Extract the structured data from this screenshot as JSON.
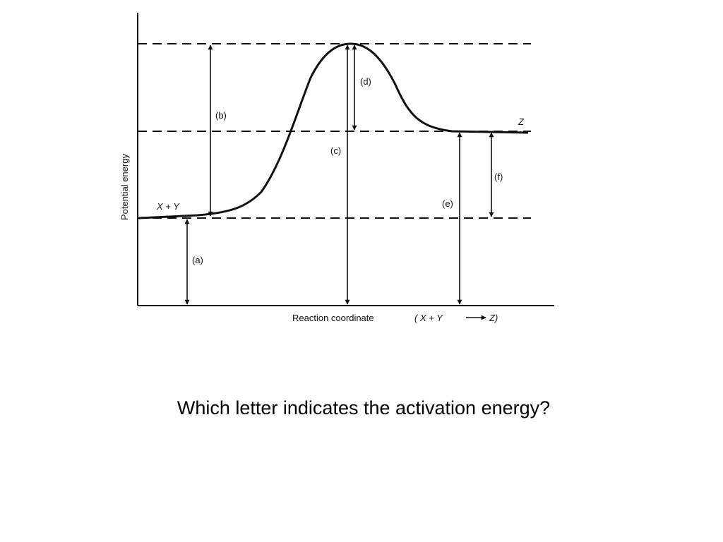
{
  "diagram": {
    "y_axis_label": "Potential energy",
    "x_axis_label": "Reaction coordinate",
    "x_axis_equation": {
      "open": "(",
      "reactants": "X + Y",
      "product": "Z)"
    },
    "reactants_label": "X + Y",
    "product_label": "Z",
    "arrows": [
      {
        "id": "a",
        "label": "(a)"
      },
      {
        "id": "b",
        "label": "(b)"
      },
      {
        "id": "c",
        "label": "(c)"
      },
      {
        "id": "d",
        "label": "(d)"
      },
      {
        "id": "e",
        "label": "(e)"
      },
      {
        "id": "f",
        "label": "(f)"
      }
    ]
  },
  "question": "Which letter indicates the activation energy?"
}
